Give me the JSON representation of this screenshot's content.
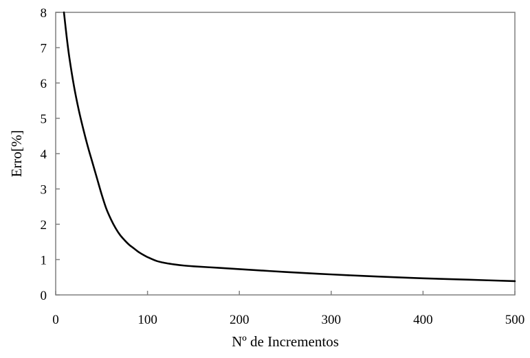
{
  "chart_data": {
    "type": "line",
    "title": "",
    "xlabel": "Nº de Incrementos",
    "ylabel": "Erro[%]",
    "xlim": [
      0,
      500
    ],
    "ylim": [
      0,
      8
    ],
    "xticks": [
      0,
      100,
      200,
      300,
      400,
      500
    ],
    "yticks": [
      0,
      1,
      2,
      3,
      4,
      5,
      6,
      7,
      8
    ],
    "grid": false,
    "legend": "none",
    "line_color": "#000000",
    "series": [
      {
        "x": [
          9,
          12,
          15,
          20,
          25,
          30,
          35,
          40,
          45,
          50,
          55,
          60,
          65,
          70,
          75,
          80,
          85,
          90,
          95,
          100,
          110,
          120,
          130,
          140,
          150,
          175,
          200,
          250,
          300,
          350,
          400,
          450,
          500
        ],
        "values": [
          8.0,
          7.3,
          6.7,
          5.9,
          5.25,
          4.7,
          4.2,
          3.75,
          3.3,
          2.85,
          2.45,
          2.15,
          1.9,
          1.7,
          1.55,
          1.42,
          1.32,
          1.22,
          1.14,
          1.07,
          0.96,
          0.9,
          0.86,
          0.83,
          0.81,
          0.77,
          0.73,
          0.65,
          0.58,
          0.52,
          0.47,
          0.43,
          0.39
        ]
      }
    ]
  }
}
